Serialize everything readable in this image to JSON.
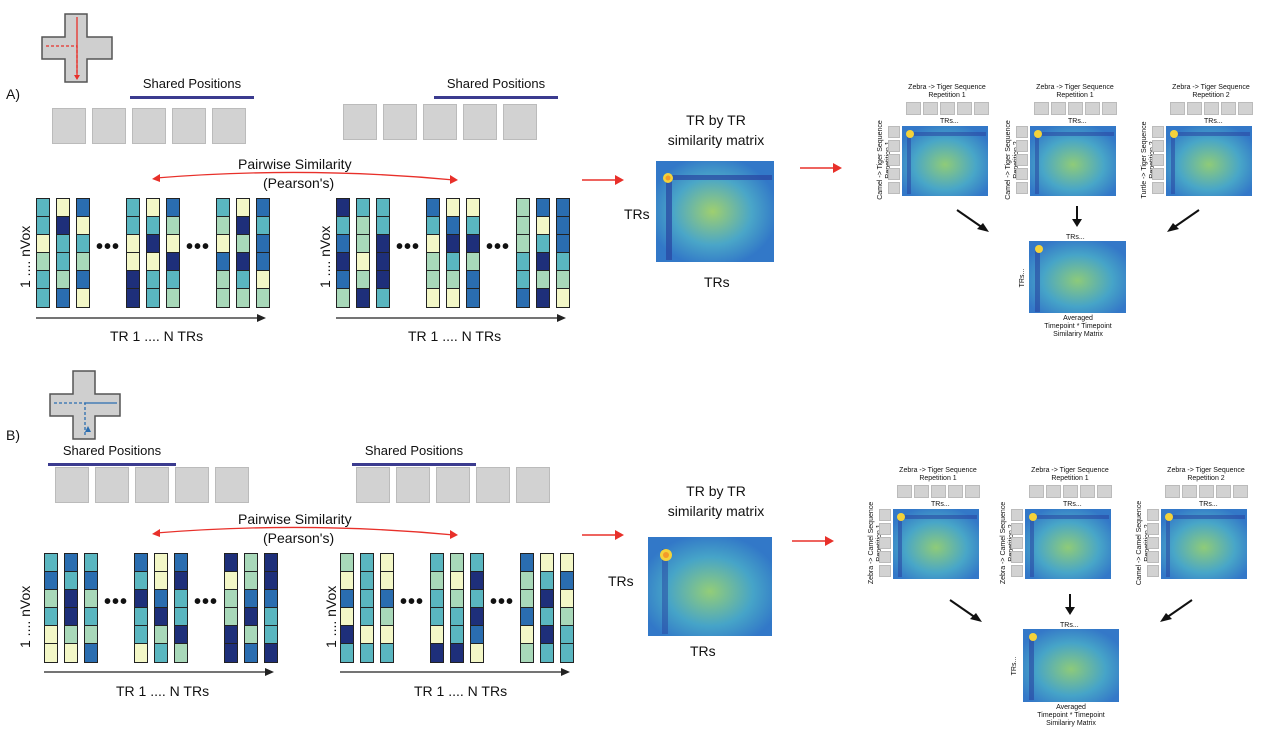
{
  "panels": [
    {
      "label": "A)",
      "shared_label_left": "Shared Positions",
      "shared_label_right": "Shared Positions",
      "animals_left": [
        "zebra-icon",
        "rooster-icon",
        "rabbit-icon",
        "horse-icon",
        "tiger-icon"
      ],
      "animals_right": [
        "camel-icon",
        "goldfish-icon",
        "rabbit-icon",
        "horse-icon",
        "tiger-icon"
      ],
      "pairwise_line1": "Pairwise Similarity",
      "pairwise_line2": "(Pearson's)",
      "voxel_axis": "1 .... nVox",
      "tr_axis": "TR 1 .... N TRs",
      "matrix_title_line1": "TR by TR",
      "matrix_title_line2": "similarity matrix",
      "matrix_ylabel": "TRs",
      "matrix_xlabel": "TRs",
      "small_titles": [
        [
          "Zebra -> Tiger Sequence",
          "Repetition 1"
        ],
        [
          "Zebra -> Tiger Sequence",
          "Repetition 1"
        ],
        [
          "Zebra -> Tiger Sequence",
          "Repetition 2"
        ]
      ],
      "small_side_labels": [
        [
          "Camel -> Tiger Sequence",
          "Repetition 1"
        ],
        [
          "Camel -> Tiger Sequence",
          "Repetition 2"
        ],
        [
          "Turtle -> Tiger Sequence",
          "Repetition 2"
        ]
      ],
      "small_trs": "TRs...",
      "avg_caption": [
        "Averaged",
        "Timepoint * Timepoint",
        "Similariry Matrix"
      ]
    },
    {
      "label": "B)",
      "shared_label_left": "Shared Positions",
      "shared_label_right": "Shared Positions",
      "animals_left": [
        "zebra-icon",
        "rooster-icon",
        "rabbit-icon",
        "horse-icon",
        "tiger-icon"
      ],
      "animals_right": [
        "zebra-icon",
        "rooster-icon",
        "rabbit-icon",
        "dog-icon",
        "turtle-icon"
      ],
      "pairwise_line1": "Pairwise Similarity",
      "pairwise_line2": "(Pearson's)",
      "voxel_axis": "1 .... nVox",
      "tr_axis": "TR 1 .... N TRs",
      "matrix_title_line1": "TR by TR",
      "matrix_title_line2": "similarity matrix",
      "matrix_ylabel": "TRs",
      "matrix_xlabel": "TRs",
      "small_titles": [
        [
          "Zebra -> Tiger Sequence",
          "Repetition 1"
        ],
        [
          "Zebra -> Tiger Sequence",
          "Repetition 1"
        ],
        [
          "Zebra -> Tiger Sequence",
          "Repetition 2"
        ]
      ],
      "small_side_labels": [
        [
          "Zebra -> Camel Sequence",
          "Repetition 1"
        ],
        [
          "Zebra -> Camel Sequence",
          "Repetition 2"
        ],
        [
          "Camel -> Camel Sequence",
          "Repetition 2"
        ]
      ],
      "small_trs": "TRs...",
      "avg_caption": [
        "Averaged",
        "Timepoint * Timepoint",
        "Similariry Matrix"
      ]
    }
  ],
  "colors": {
    "pale": "#f3f7c7",
    "light_teal": "#a8d8b9",
    "teal": "#5ab6c0",
    "blue": "#2a6db0",
    "dark_blue": "#1e2f7a",
    "arrow_red": "#e8302a",
    "underline": "#3b3b8f"
  }
}
